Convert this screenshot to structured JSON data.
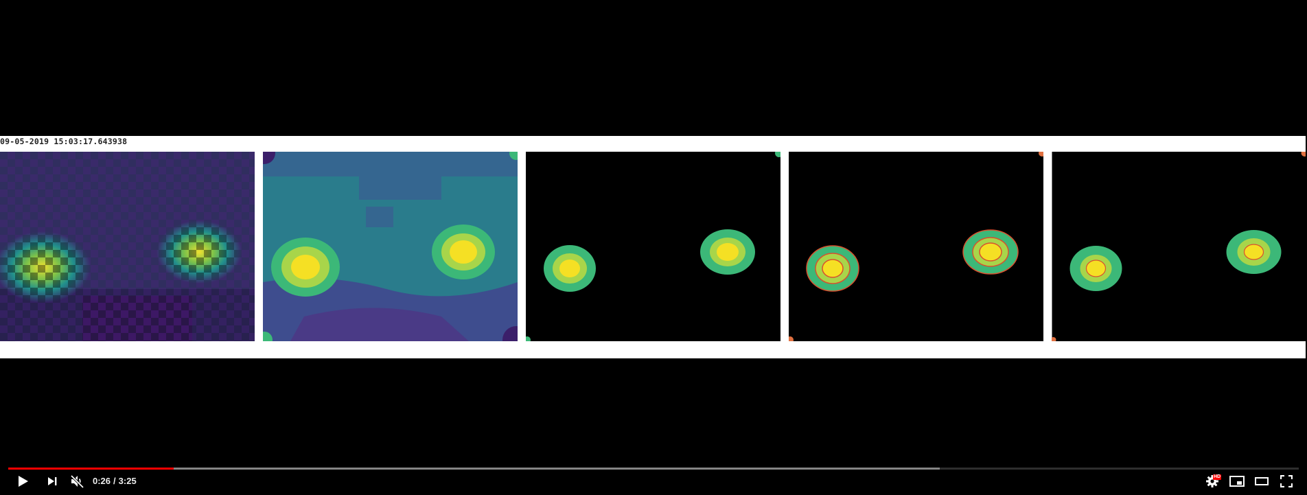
{
  "video": {
    "frame_timestamp": "09-05-2019 15:03:17.643938",
    "panels": [
      {
        "id": "checkerboard-heatmap"
      },
      {
        "id": "smoothed-heatmap"
      },
      {
        "id": "threshold-blobs"
      },
      {
        "id": "contoured-blobs"
      },
      {
        "id": "contoured-blobs-refined"
      }
    ]
  },
  "player": {
    "progress": {
      "played_fraction": 0.128,
      "buffered_fraction": 0.722
    },
    "time_current": "0:26",
    "time_separator": "/",
    "time_total": "3:25",
    "hd_badge": "HD",
    "icons": {
      "play": "play-icon",
      "next": "next-icon",
      "mute": "volume-muted-icon",
      "settings": "gear-icon",
      "miniplayer": "miniplayer-icon",
      "theater": "theater-mode-icon",
      "fullscreen": "fullscreen-icon"
    },
    "colors": {
      "progress_played": "#ff0000",
      "badge": "#ff0000"
    }
  }
}
